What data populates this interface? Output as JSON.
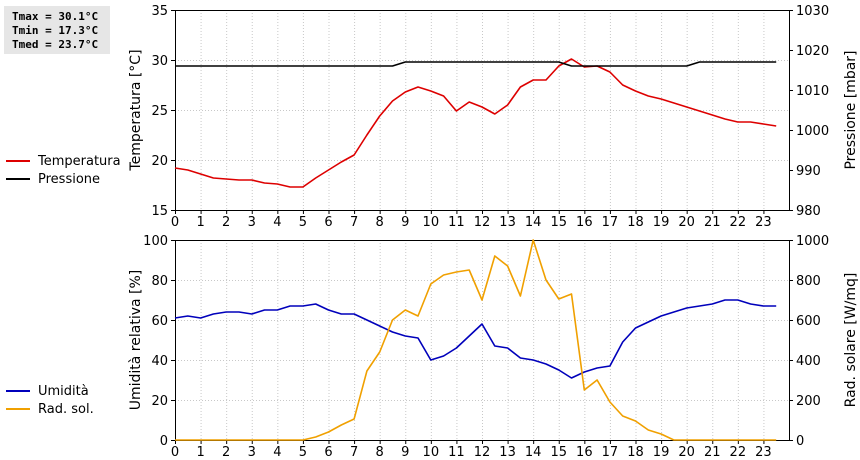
{
  "stats": {
    "tmax": "Tmax = 30.1°C",
    "tmin": "Tmin = 17.3°C",
    "tmed": "Tmed = 23.7°C"
  },
  "chart_data": [
    {
      "type": "line",
      "x_ticks": [
        "0",
        "1",
        "2",
        "3",
        "4",
        "5",
        "6",
        "7",
        "8",
        "9",
        "10",
        "11",
        "12",
        "13",
        "14",
        "15",
        "16",
        "17",
        "18",
        "19",
        "20",
        "21",
        "22",
        "23"
      ],
      "xlim": [
        0,
        24
      ],
      "ylabel_left": "Temperatura [°C]",
      "ylabel_right": "Pressione [mbar]",
      "ylim_left": [
        15,
        35
      ],
      "yticks_left": [
        "15",
        "20",
        "25",
        "30",
        "35"
      ],
      "ylim_right": [
        980,
        1030
      ],
      "yticks_right": [
        "980",
        "990",
        "1000",
        "1010",
        "1020",
        "1030"
      ],
      "grid": true,
      "legend_placement": "left",
      "series": [
        {
          "name": "Temperatura",
          "axis": "left",
          "color": "#dd0000",
          "x": [
            0,
            0.5,
            1,
            1.5,
            2,
            2.5,
            3,
            3.5,
            4,
            4.5,
            5,
            5.5,
            6,
            6.5,
            7,
            7.5,
            8,
            8.5,
            9,
            9.5,
            10,
            10.5,
            11,
            11.5,
            12,
            12.5,
            13,
            13.5,
            14,
            14.5,
            15,
            15.5,
            16,
            16.5,
            17,
            17.5,
            18,
            18.5,
            19,
            19.5,
            20,
            20.5,
            21,
            21.5,
            22,
            22.5,
            23,
            23.5
          ],
          "values": [
            19.2,
            19.0,
            18.6,
            18.2,
            18.1,
            18.0,
            18.0,
            17.7,
            17.6,
            17.3,
            17.3,
            18.2,
            19.0,
            19.8,
            20.5,
            22.5,
            24.4,
            25.9,
            26.8,
            27.3,
            26.9,
            26.4,
            24.9,
            25.8,
            25.3,
            24.6,
            25.5,
            27.3,
            28.0,
            28.0,
            29.4,
            30.1,
            29.3,
            29.4,
            28.8,
            27.5,
            26.9,
            26.4,
            26.1,
            25.7,
            25.3,
            24.9,
            24.5,
            24.1,
            23.8,
            23.8,
            23.6,
            23.4
          ]
        },
        {
          "name": "Pressione",
          "axis": "right",
          "color": "#000000",
          "x": [
            0,
            8.5,
            9,
            15,
            15.5,
            20,
            20.5,
            23.5
          ],
          "values": [
            1016,
            1016,
            1017,
            1017,
            1016,
            1016,
            1017,
            1017
          ]
        }
      ]
    },
    {
      "type": "line",
      "x_ticks": [
        "0",
        "1",
        "2",
        "3",
        "4",
        "5",
        "6",
        "7",
        "8",
        "9",
        "10",
        "11",
        "12",
        "13",
        "14",
        "15",
        "16",
        "17",
        "18",
        "19",
        "20",
        "21",
        "22",
        "23"
      ],
      "xlim": [
        0,
        24
      ],
      "ylabel_left": "Umidità relativa [%]",
      "ylabel_right": "Rad. solare [W/mq]",
      "ylim_left": [
        0,
        100
      ],
      "yticks_left": [
        "0",
        "20",
        "40",
        "60",
        "80",
        "100"
      ],
      "ylim_right": [
        0,
        1000
      ],
      "yticks_right": [
        "0",
        "200",
        "400",
        "600",
        "800",
        "1000"
      ],
      "grid": true,
      "legend_placement": "left",
      "series": [
        {
          "name": "Umidità",
          "axis": "left",
          "color": "#0000bb",
          "x": [
            0,
            0.5,
            1,
            1.5,
            2,
            2.5,
            3,
            3.5,
            4,
            4.5,
            5,
            5.5,
            6,
            6.5,
            7,
            7.5,
            8,
            8.5,
            9,
            9.5,
            10,
            10.5,
            11,
            11.5,
            12,
            12.5,
            13,
            13.5,
            14,
            14.5,
            15,
            15.5,
            16,
            16.5,
            17,
            17.5,
            18,
            18.5,
            19,
            19.5,
            20,
            20.5,
            21,
            21.5,
            22,
            22.5,
            23,
            23.5
          ],
          "values": [
            61,
            62,
            61,
            63,
            64,
            64,
            63,
            65,
            65,
            67,
            67,
            68,
            65,
            63,
            63,
            60,
            57,
            54,
            52,
            51,
            40,
            42,
            46,
            52,
            58,
            47,
            46,
            41,
            40,
            38,
            35,
            31,
            34,
            36,
            37,
            49,
            56,
            59,
            62,
            64,
            66,
            67,
            68,
            70,
            70,
            68,
            67,
            67
          ]
        },
        {
          "name": "Rad. sol.",
          "axis": "right",
          "color": "#f0a000",
          "x": [
            0,
            5,
            5.5,
            6,
            6.5,
            7,
            7.5,
            8,
            8.5,
            9,
            9.5,
            10,
            10.5,
            11,
            11.5,
            12,
            12.5,
            13,
            13.5,
            14,
            14.5,
            15,
            15.5,
            16,
            16.5,
            17,
            17.5,
            18,
            18.5,
            19,
            19.5,
            20,
            23.5
          ],
          "values": [
            0,
            0,
            15,
            40,
            75,
            105,
            345,
            440,
            600,
            650,
            620,
            780,
            825,
            840,
            850,
            700,
            920,
            870,
            720,
            1000,
            800,
            705,
            730,
            250,
            300,
            190,
            120,
            95,
            50,
            30,
            0,
            0,
            0
          ]
        }
      ]
    }
  ]
}
